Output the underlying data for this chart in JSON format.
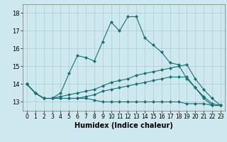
{
  "xlabel": "Humidex (Indice chaleur)",
  "xlim": [
    -0.5,
    23.5
  ],
  "ylim": [
    12.5,
    18.5
  ],
  "xticks": [
    0,
    1,
    2,
    3,
    4,
    5,
    6,
    7,
    8,
    9,
    10,
    11,
    12,
    13,
    14,
    15,
    16,
    17,
    18,
    19,
    20,
    21,
    22,
    23
  ],
  "yticks": [
    13,
    14,
    15,
    16,
    17,
    18
  ],
  "background_color": "#cde8ee",
  "grid_color": "#aacccc",
  "line_color": "#1a7070",
  "line1_x": [
    0,
    1,
    2,
    3,
    4,
    5,
    6,
    7,
    8,
    9,
    10,
    11,
    12,
    13,
    14,
    15,
    16,
    17,
    18,
    19,
    20,
    21,
    22,
    23
  ],
  "line1_y": [
    14.0,
    13.5,
    13.2,
    13.2,
    13.5,
    14.6,
    15.6,
    15.5,
    15.3,
    16.4,
    17.5,
    17.0,
    17.8,
    17.8,
    16.6,
    16.2,
    15.8,
    15.2,
    15.1,
    14.3,
    13.8,
    13.2,
    12.8,
    12.8
  ],
  "line2_x": [
    0,
    1,
    2,
    3,
    4,
    5,
    6,
    7,
    8,
    9,
    10,
    11,
    12,
    13,
    14,
    15,
    16,
    17,
    18,
    19,
    20,
    21,
    22,
    23
  ],
  "line2_y": [
    14.0,
    13.5,
    13.2,
    13.2,
    13.3,
    13.4,
    13.5,
    13.6,
    13.7,
    13.9,
    14.1,
    14.2,
    14.3,
    14.5,
    14.6,
    14.7,
    14.8,
    14.9,
    15.0,
    15.1,
    14.3,
    13.7,
    13.2,
    12.8
  ],
  "line3_x": [
    0,
    1,
    2,
    3,
    4,
    5,
    6,
    7,
    8,
    9,
    10,
    11,
    12,
    13,
    14,
    15,
    16,
    17,
    18,
    19,
    20,
    21,
    22,
    23
  ],
  "line3_y": [
    14.0,
    13.5,
    13.2,
    13.2,
    13.2,
    13.2,
    13.2,
    13.2,
    13.1,
    13.0,
    13.0,
    13.0,
    13.0,
    13.0,
    13.0,
    13.0,
    13.0,
    13.0,
    13.0,
    12.9,
    12.9,
    12.9,
    12.8,
    12.8
  ],
  "line4_x": [
    0,
    1,
    2,
    3,
    4,
    5,
    6,
    7,
    8,
    9,
    10,
    11,
    12,
    13,
    14,
    15,
    16,
    17,
    18,
    19,
    20,
    21,
    22,
    23
  ],
  "line4_y": [
    14.0,
    13.5,
    13.2,
    13.2,
    13.2,
    13.2,
    13.2,
    13.3,
    13.4,
    13.6,
    13.7,
    13.8,
    13.9,
    14.0,
    14.1,
    14.2,
    14.3,
    14.4,
    14.4,
    14.4,
    13.8,
    13.3,
    12.9,
    12.8
  ]
}
